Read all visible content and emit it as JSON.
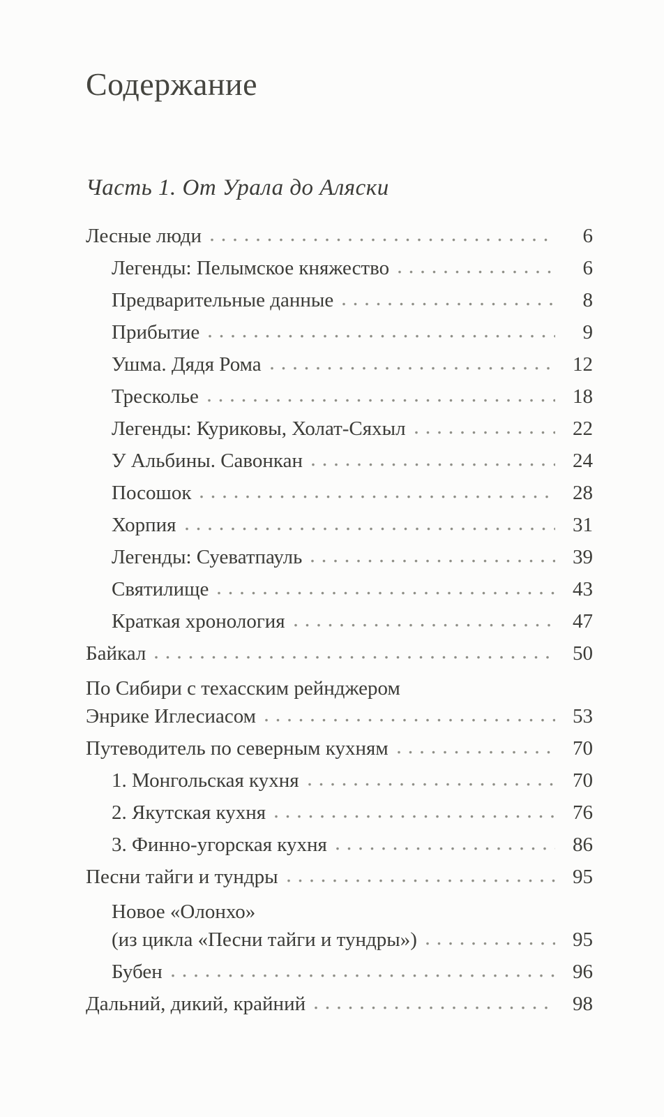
{
  "page": {
    "title": "Содержание",
    "part_heading": "Часть 1. От Урала до Аляски"
  },
  "colors": {
    "ink": "#3c3c38",
    "title-ink": "#45453f",
    "dot": "#8e8e86",
    "paper": "#fcfcfb"
  },
  "toc": {
    "entries": [
      {
        "label_lines": [
          "Лесные люди"
        ],
        "page": "6",
        "level": 0
      },
      {
        "label_lines": [
          "Легенды: Пелымское княжество"
        ],
        "page": "6",
        "level": 1
      },
      {
        "label_lines": [
          "Предварительные данные"
        ],
        "page": "8",
        "level": 1
      },
      {
        "label_lines": [
          "Прибытие"
        ],
        "page": "9",
        "level": 1
      },
      {
        "label_lines": [
          "Ушма. Дядя Рома"
        ],
        "page": "12",
        "level": 1
      },
      {
        "label_lines": [
          "Тресколье"
        ],
        "page": "18",
        "level": 1
      },
      {
        "label_lines": [
          "Легенды: Куриковы, Холат-Сяхыл"
        ],
        "page": "22",
        "level": 1
      },
      {
        "label_lines": [
          "У Альбины. Савонкан"
        ],
        "page": "24",
        "level": 1
      },
      {
        "label_lines": [
          "Посошок"
        ],
        "page": "28",
        "level": 1
      },
      {
        "label_lines": [
          "Хорпия"
        ],
        "page": "31",
        "level": 1
      },
      {
        "label_lines": [
          "Легенды: Суеватпауль"
        ],
        "page": "39",
        "level": 1
      },
      {
        "label_lines": [
          "Святилище"
        ],
        "page": "43",
        "level": 1
      },
      {
        "label_lines": [
          "Краткая хронология"
        ],
        "page": "47",
        "level": 1
      },
      {
        "label_lines": [
          "Байкал"
        ],
        "page": "50",
        "level": 0
      },
      {
        "label_lines": [
          "По Сибири с техасским рейнджером",
          "Энрике Иглесиасом"
        ],
        "page": "53",
        "level": 0
      },
      {
        "label_lines": [
          "Путеводитель по северным кухням"
        ],
        "page": "70",
        "level": 0
      },
      {
        "label_lines": [
          "1. Монгольская кухня"
        ],
        "page": "70",
        "level": 1
      },
      {
        "label_lines": [
          "2. Якутская кухня"
        ],
        "page": "76",
        "level": 1
      },
      {
        "label_lines": [
          "3. Финно-угорская кухня"
        ],
        "page": "86",
        "level": 1
      },
      {
        "label_lines": [
          "Песни тайги и тундры"
        ],
        "page": "95",
        "level": 0
      },
      {
        "label_lines": [
          "Новое «Олонхо»",
          "(из цикла «Песни тайги и тундры»)"
        ],
        "page": "95",
        "level": 1
      },
      {
        "label_lines": [
          "Бубен"
        ],
        "page": "96",
        "level": 1
      },
      {
        "label_lines": [
          "Дальний, дикий, крайний"
        ],
        "page": "98",
        "level": 0
      }
    ]
  }
}
